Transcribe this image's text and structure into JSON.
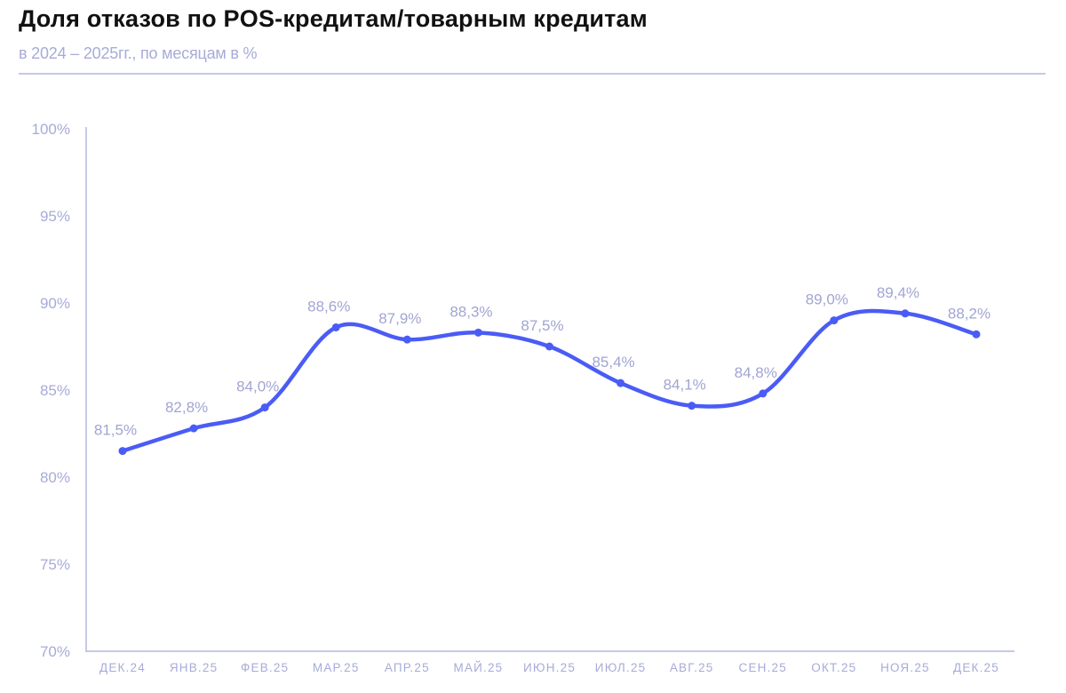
{
  "header": {
    "title": "Доля отказов по POS-кредитам/товарным кредитам",
    "subtitle": "в 2024 – 2025гг., по месяцам в %"
  },
  "colors": {
    "line": "#4a5cf5",
    "axis": "#c6c9e6",
    "text_muted": "#a7abd8",
    "title": "#111111"
  },
  "chart_data": {
    "type": "line",
    "title": "Доля отказов по POS-кредитам/товарным кредитам",
    "subtitle": "в 2024 – 2025гг., по месяцам в %",
    "xlabel": "",
    "ylabel": "",
    "categories": [
      "ДЕК.24",
      "ЯНВ.25",
      "ФЕВ.25",
      "МАР.25",
      "АПР.25",
      "МАЙ.25",
      "ИЮН.25",
      "ИЮЛ.25",
      "АВГ.25",
      "СЕН.25",
      "ОКТ.25",
      "НОЯ.25",
      "ДЕК.25"
    ],
    "series": [
      {
        "name": "Доля отказов",
        "values": [
          81.5,
          82.8,
          84.0,
          88.6,
          87.9,
          88.3,
          87.5,
          85.4,
          84.1,
          84.8,
          89.0,
          89.4,
          88.2
        ],
        "labels": [
          "81,5%",
          "82,8%",
          "84,0%",
          "88,6%",
          "87,9%",
          "88,3%",
          "87,5%",
          "85,4%",
          "84,1%",
          "84,8%",
          "89,0%",
          "89,4%",
          "88,2%"
        ]
      }
    ],
    "ylim": [
      70,
      100
    ],
    "yticks": [
      70,
      75,
      80,
      85,
      90,
      95,
      100
    ],
    "ytick_labels": [
      "70%",
      "75%",
      "80%",
      "85%",
      "90%",
      "95%",
      "100%"
    ],
    "grid": false,
    "smooth": true,
    "markers": true,
    "legend": null
  }
}
